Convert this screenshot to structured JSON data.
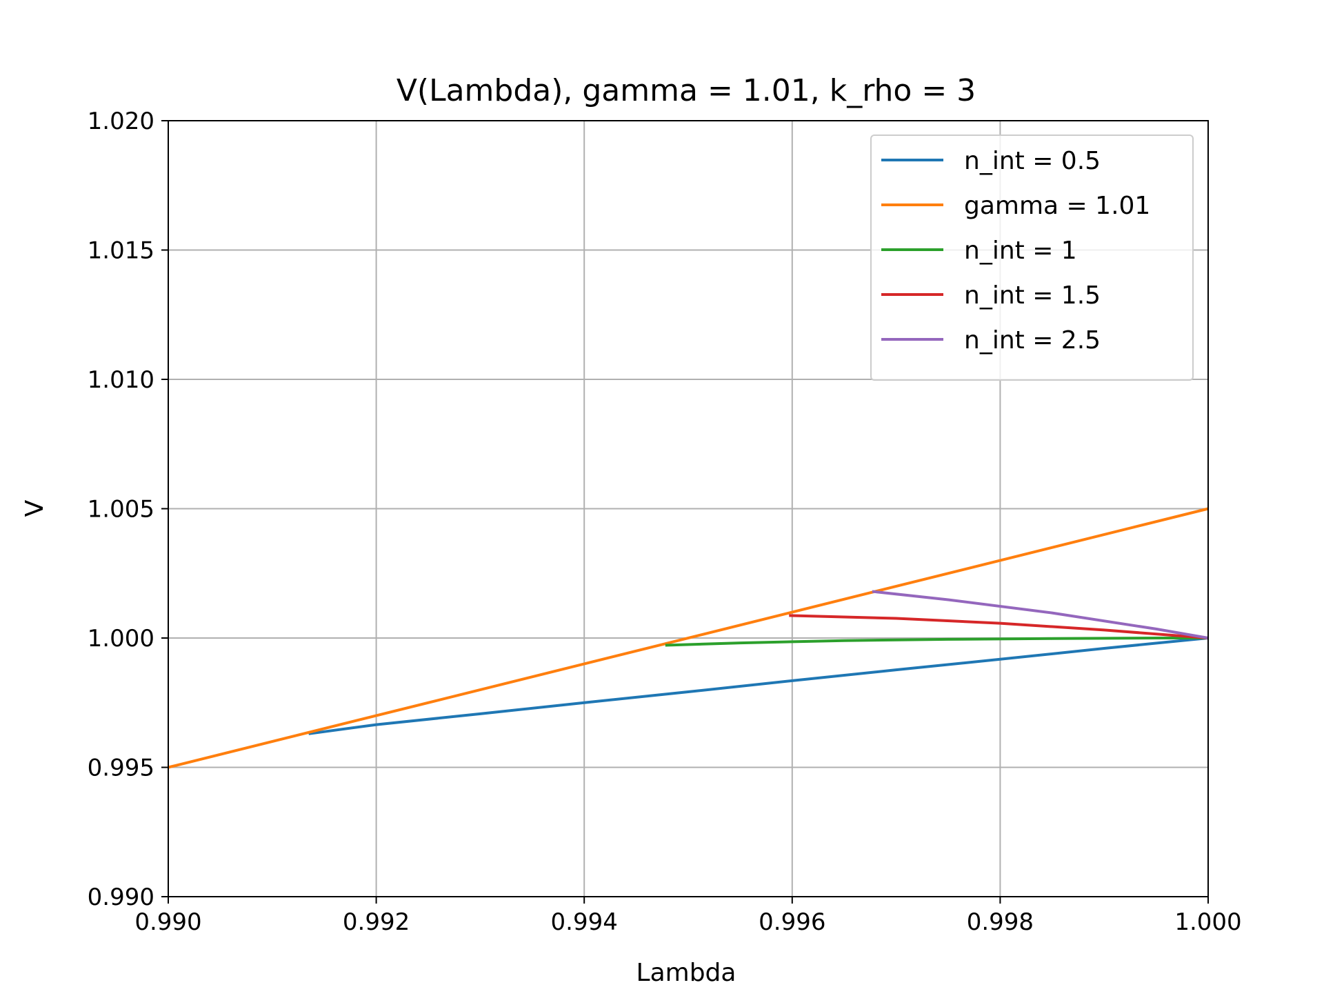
{
  "chart_data": {
    "type": "line",
    "title": "V(Lambda), gamma = 1.01, k_rho = 3",
    "xlabel": "Lambda",
    "ylabel": "V",
    "xlim": [
      0.99,
      1.0
    ],
    "ylim": [
      0.99,
      1.02
    ],
    "x_ticks": [
      0.99,
      0.992,
      0.994,
      0.996,
      0.998,
      1.0
    ],
    "x_tick_labels": [
      "0.990",
      "0.992",
      "0.994",
      "0.996",
      "0.998",
      "1.000"
    ],
    "y_ticks": [
      0.99,
      0.995,
      1.0,
      1.005,
      1.01,
      1.015,
      1.02
    ],
    "y_tick_labels": [
      "0.990",
      "0.995",
      "1.000",
      "1.005",
      "1.010",
      "1.015",
      "1.020"
    ],
    "grid": true,
    "legend_position": "top-right",
    "series": [
      {
        "name": "n_int = 0.5",
        "color": "#1f77b4",
        "x": [
          0.99135,
          0.992,
          0.993,
          0.994,
          0.995,
          0.996,
          0.997,
          0.998,
          0.999,
          1.0
        ],
        "y": [
          0.9963,
          0.99665,
          0.99707,
          0.9975,
          0.99792,
          0.99835,
          0.99877,
          0.99918,
          0.9996,
          1.0
        ]
      },
      {
        "name": "gamma = 1.01",
        "color": "#ff7f0e",
        "x": [
          0.99,
          1.0
        ],
        "y": [
          0.995,
          1.005
        ]
      },
      {
        "name": "n_int = 1",
        "color": "#2ca02c",
        "x": [
          0.99478,
          0.9955,
          0.9965,
          0.9975,
          0.9985,
          0.9995,
          1.0
        ],
        "y": [
          0.99972,
          0.99981,
          0.9999,
          0.99995,
          0.99998,
          1.0,
          1.0
        ]
      },
      {
        "name": "n_int = 1.5",
        "color": "#d62728",
        "x": [
          0.99597,
          0.997,
          0.998,
          0.999,
          1.0
        ],
        "y": [
          1.00087,
          1.00076,
          1.00057,
          1.00031,
          1.0
        ]
      },
      {
        "name": "n_int = 2.5",
        "color": "#9467bd",
        "x": [
          0.99677,
          0.9975,
          0.9985,
          0.9995,
          1.0
        ],
        "y": [
          1.0018,
          1.00148,
          1.00097,
          1.00035,
          1.0
        ]
      }
    ]
  }
}
